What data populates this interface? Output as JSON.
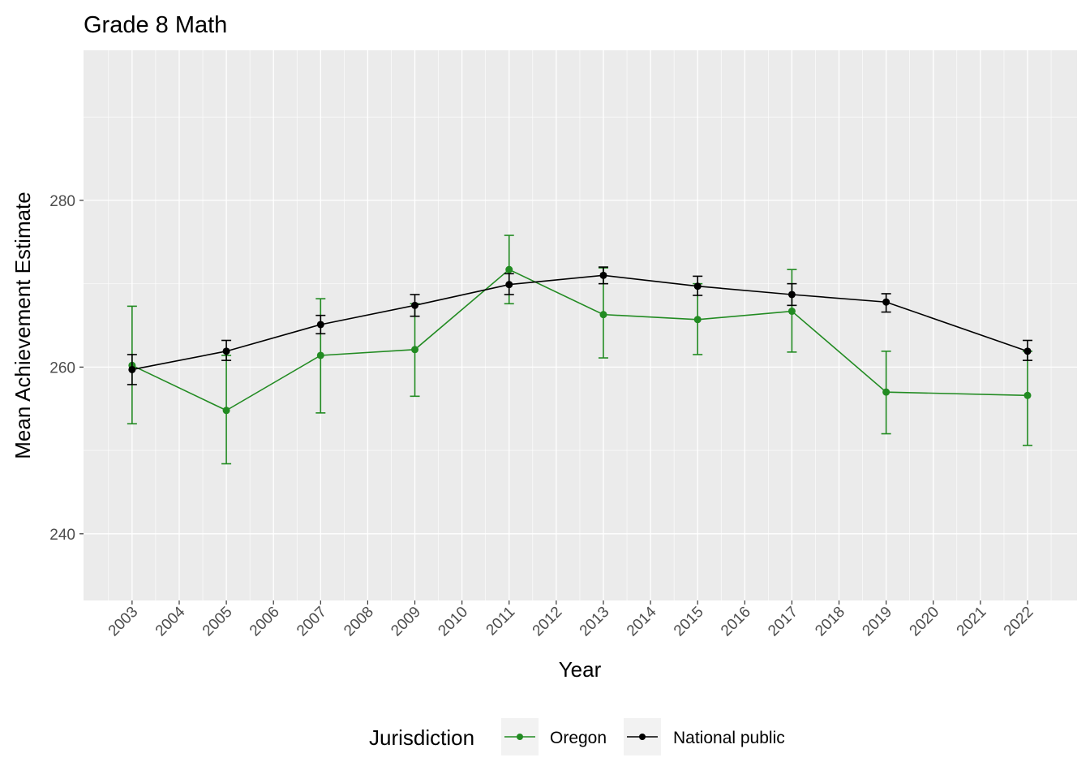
{
  "chart_data": {
    "type": "line",
    "title": "Grade 8 Math",
    "xlabel": "Year",
    "ylabel": "Mean Achievement Estimate",
    "xlim": [
      2001.97,
      2023.05
    ],
    "ylim": [
      232,
      298
    ],
    "x_ticks": [
      2003,
      2004,
      2005,
      2006,
      2007,
      2008,
      2009,
      2010,
      2011,
      2012,
      2013,
      2014,
      2015,
      2016,
      2017,
      2018,
      2019,
      2020,
      2021,
      2022
    ],
    "y_ticks": [
      240,
      260,
      280
    ],
    "grid": true,
    "legend": {
      "title": "Jurisdiction",
      "placement": "bottom"
    },
    "series": [
      {
        "name": "Oregon",
        "color": "#228B22",
        "x": [
          2003,
          2005,
          2007,
          2009,
          2011,
          2013,
          2015,
          2017,
          2019,
          2022
        ],
        "y": [
          260.2,
          254.8,
          261.4,
          262.1,
          271.7,
          266.3,
          265.7,
          266.7,
          257.0,
          256.6
        ],
        "upper": [
          267.3,
          261.4,
          268.2,
          267.6,
          275.8,
          271.9,
          270.0,
          271.7,
          261.9,
          261.9
        ],
        "lower": [
          253.2,
          248.4,
          254.5,
          256.5,
          267.6,
          261.1,
          261.5,
          261.8,
          252.0,
          250.6
        ]
      },
      {
        "name": "National public",
        "color": "#000000",
        "x": [
          2003,
          2005,
          2007,
          2009,
          2011,
          2013,
          2015,
          2017,
          2019,
          2022
        ],
        "y": [
          259.7,
          261.9,
          265.1,
          267.4,
          269.9,
          271.0,
          269.7,
          268.7,
          267.8,
          261.9
        ],
        "upper": [
          261.5,
          263.2,
          266.2,
          268.7,
          271.2,
          272.0,
          270.9,
          270.0,
          268.8,
          263.2
        ],
        "lower": [
          257.9,
          260.8,
          264.0,
          266.1,
          268.7,
          270.0,
          268.6,
          267.4,
          266.6,
          260.8
        ]
      }
    ]
  }
}
